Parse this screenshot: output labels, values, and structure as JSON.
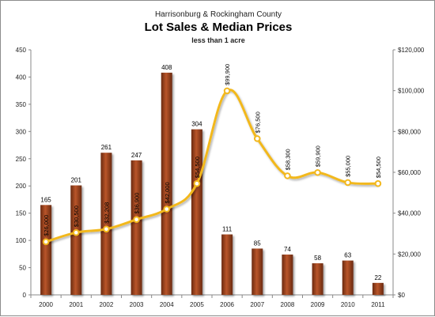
{
  "chart_data": {
    "type": "bar+line",
    "title_top": "Harrisonburg & Rockingham County",
    "title": "Lot Sales & Median Prices",
    "subtitle": "less than 1 acre",
    "categories": [
      "2000",
      "2001",
      "2002",
      "2003",
      "2004",
      "2005",
      "2006",
      "2007",
      "2008",
      "2009",
      "2010",
      "2011"
    ],
    "series": [
      {
        "type": "bar",
        "axis": "left",
        "values": [
          165,
          201,
          261,
          247,
          408,
          304,
          111,
          85,
          74,
          58,
          63,
          22
        ],
        "labels": [
          "165",
          "201",
          "261",
          "247",
          "408",
          "304",
          "111",
          "85",
          "74",
          "58",
          "63",
          "22"
        ]
      },
      {
        "type": "line",
        "axis": "right",
        "values": [
          26000,
          30500,
          32208,
          36900,
          42000,
          54500,
          99900,
          76500,
          58300,
          59900,
          55000,
          54500
        ],
        "labels": [
          "$26,000",
          "$30,500",
          "$32,208",
          "$36,900",
          "$42,000",
          "$54,500",
          "$99,900",
          "$76,500",
          "$58,300",
          "$59,900",
          "$55,000",
          "$54,500"
        ]
      }
    ],
    "y_left": {
      "min": 0,
      "max": 450,
      "ticks": [
        0,
        50,
        100,
        150,
        200,
        250,
        300,
        350,
        400,
        450
      ],
      "tick_labels": [
        "0",
        "50",
        "100",
        "150",
        "200",
        "250",
        "300",
        "350",
        "400",
        "450"
      ]
    },
    "y_right": {
      "min": 0,
      "max": 120000,
      "ticks": [
        0,
        20000,
        40000,
        60000,
        80000,
        100000,
        120000
      ],
      "tick_labels": [
        "$0",
        "$20,000",
        "$40,000",
        "$60,000",
        "$80,000",
        "$100,000",
        "$120,000"
      ]
    },
    "grid": false,
    "legend": "none",
    "colors": {
      "bar": "#9a3f1a",
      "bar_highlight": "#b9552a",
      "bar_shadow": "#6a2a10",
      "line": "#f2b81f",
      "marker_fill": "#ffffff"
    }
  }
}
